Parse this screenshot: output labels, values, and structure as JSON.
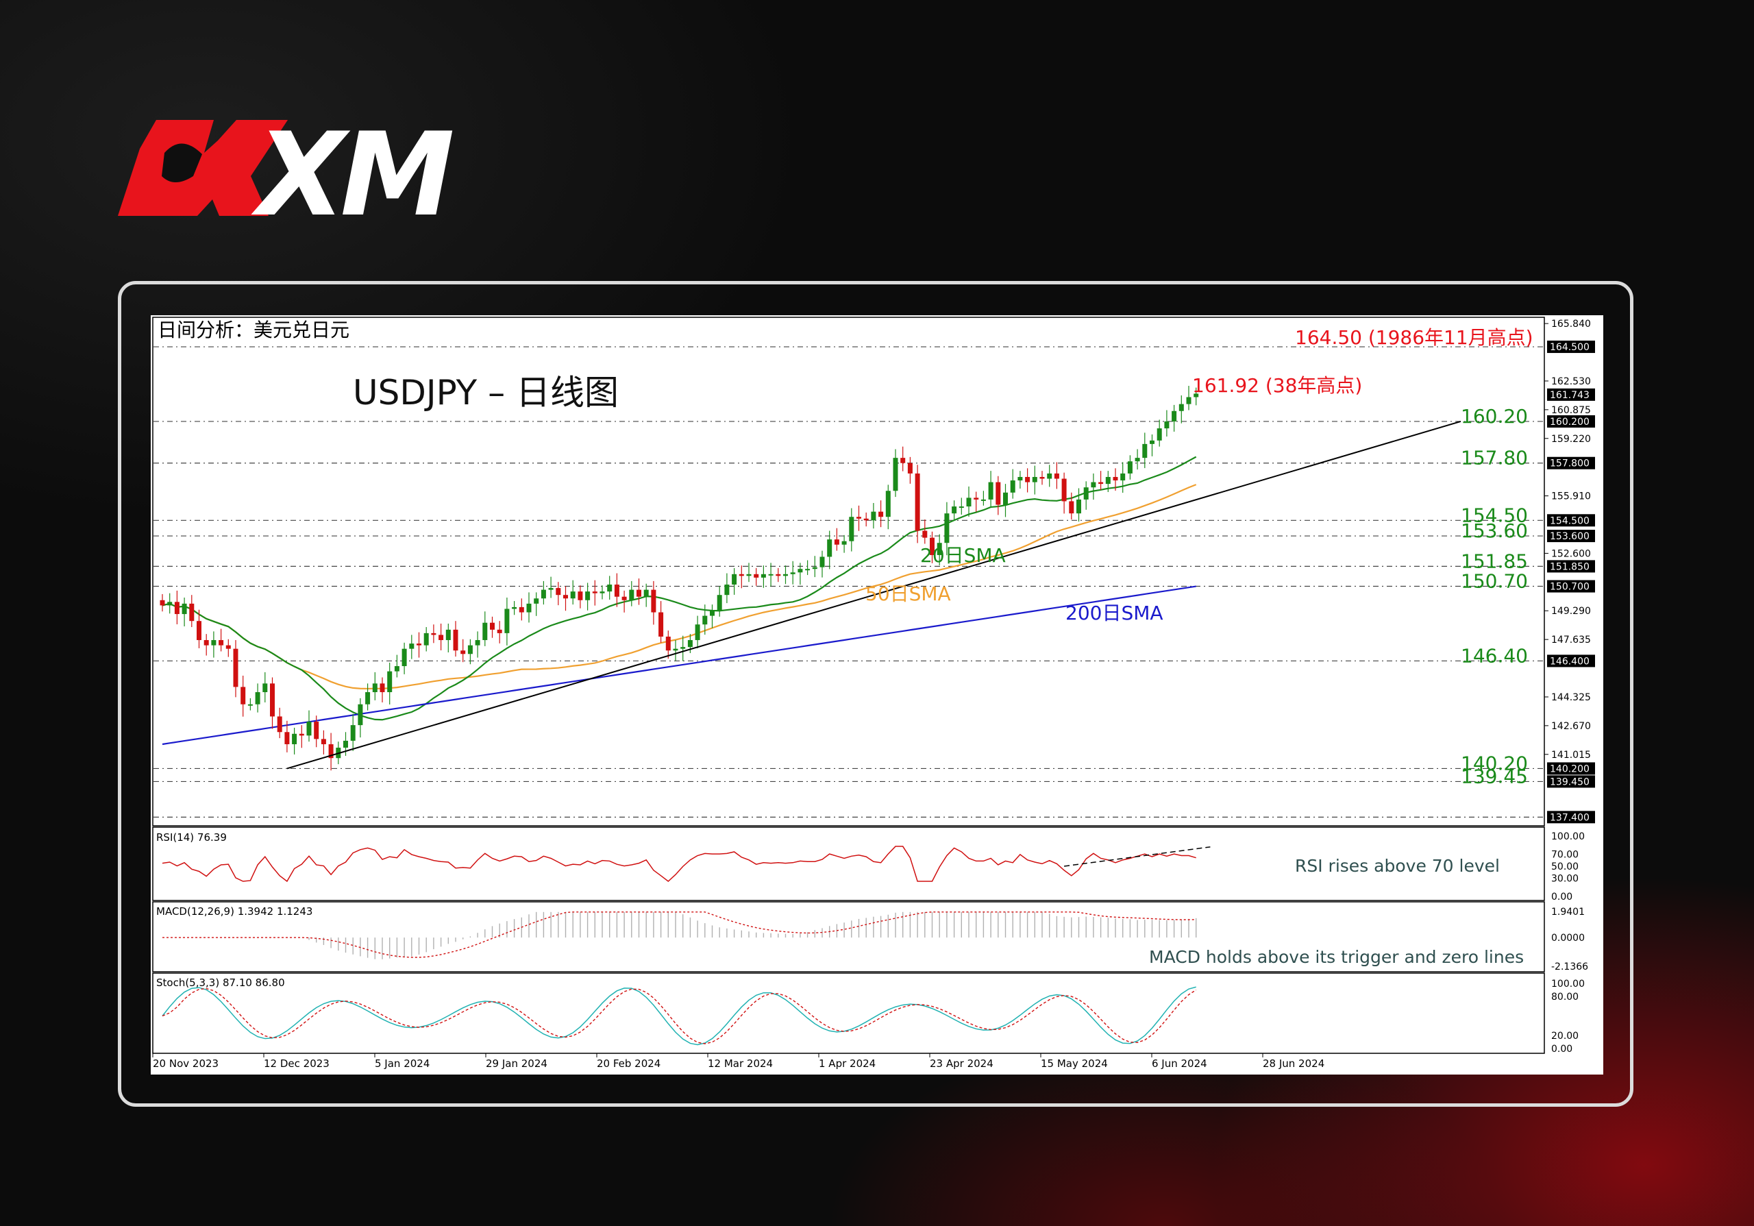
{
  "brand": {
    "logo_text": "XM",
    "red": "#e8141c"
  },
  "chart_panel_label": "日间分析：美元兑日元",
  "chart_title": "USDJPY – 日线图",
  "chart_data": {
    "type": "candlestick",
    "symbol": "USDJPY",
    "timeframe": "日线图",
    "x_tick_labels": [
      "20 Nov 2023",
      "12 Dec 2023",
      "5 Jan 2024",
      "29 Jan 2024",
      "20 Feb 2024",
      "12 Mar 2024",
      "1 Apr 2024",
      "23 Apr 2024",
      "15 May 2024",
      "6 Jun 2024",
      "28 Jun 2024"
    ],
    "ylim": [
      136.9,
      166.2
    ],
    "y_tick_labels": [
      "165.840",
      "162.530",
      "160.875",
      "159.220",
      "155.910",
      "152.600",
      "149.290",
      "147.635",
      "144.325",
      "142.670",
      "141.015"
    ],
    "levels": [
      {
        "value": 164.5,
        "label": "164.50 (1986年11月高点)",
        "price_tag": "164.500",
        "color": "#e8141c"
      },
      {
        "value": 160.2,
        "label": "160.20",
        "price_tag": "160.200",
        "color": "#1a8a1a"
      },
      {
        "value": 157.8,
        "label": "157.80",
        "price_tag": "157.800",
        "color": "#1a8a1a"
      },
      {
        "value": 154.5,
        "label": "154.50",
        "price_tag": "154.500",
        "color": "#1a8a1a"
      },
      {
        "value": 153.6,
        "label": "153.60",
        "price_tag": "153.600",
        "color": "#1a8a1a"
      },
      {
        "value": 151.85,
        "label": "151.85",
        "price_tag": "151.850",
        "color": "#1a8a1a"
      },
      {
        "value": 150.7,
        "label": "150.70",
        "price_tag": "150.700",
        "color": "#1a8a1a"
      },
      {
        "value": 146.4,
        "label": "146.40",
        "price_tag": "146.400",
        "color": "#1a8a1a"
      },
      {
        "value": 140.2,
        "label": "140.20",
        "price_tag": "140.200",
        "color": "#1a8a1a"
      },
      {
        "value": 139.45,
        "label": "139.45",
        "price_tag": "139.450",
        "color": "#1a8a1a"
      },
      {
        "value": 137.4,
        "label": "",
        "price_tag": "137.400",
        "color": "#1a8a1a"
      }
    ],
    "high_annotation": {
      "value": 161.92,
      "label": "161.92 (38年高点)"
    },
    "last_price_tag": "161.743",
    "closes": [
      149.6,
      149.8,
      149.1,
      149.7,
      148.7,
      147.6,
      147.3,
      147.6,
      147.3,
      147.1,
      144.9,
      143.9,
      143.9,
      144.6,
      145.1,
      143.2,
      142.3,
      141.6,
      142.2,
      142.1,
      142.9,
      141.9,
      141.6,
      140.8,
      141.4,
      141.8,
      142.7,
      143.9,
      144.6,
      145.1,
      144.6,
      145.8,
      146.1,
      147.1,
      147.4,
      147.3,
      148.0,
      147.9,
      147.6,
      148.2,
      147.0,
      146.8,
      147.3,
      147.6,
      148.6,
      148.2,
      148.0,
      149.4,
      149.5,
      149.2,
      149.7,
      150.0,
      150.5,
      150.6,
      150.2,
      150.0,
      150.4,
      149.9,
      150.4,
      150.3,
      150.4,
      150.8,
      150.1,
      149.9,
      150.5,
      150.1,
      150.5,
      149.2,
      147.8,
      147.0,
      147.1,
      147.2,
      147.6,
      148.5,
      149.0,
      149.3,
      150.2,
      150.8,
      151.4,
      151.3,
      151.4,
      151.2,
      151.4,
      151.4,
      151.3,
      151.4,
      151.5,
      151.7,
      151.7,
      151.8,
      152.4,
      153.4,
      153.1,
      153.3,
      154.7,
      154.6,
      154.5,
      155.0,
      154.7,
      156.2,
      158.1,
      157.8,
      157.2,
      153.9,
      153.5,
      152.5,
      153.2,
      154.9,
      155.3,
      155.3,
      155.8,
      155.7,
      155.7,
      156.7,
      155.4,
      156.1,
      156.8,
      157.0,
      156.7,
      157.0,
      156.9,
      157.2,
      156.9,
      155.6,
      154.9,
      155.7,
      156.4,
      156.7,
      156.6,
      157.0,
      156.8,
      157.2,
      157.9,
      158.1,
      158.9,
      159.1,
      159.8,
      160.2,
      160.8,
      161.2,
      161.6,
      161.8
    ],
    "sma20_label": "20日SMA",
    "sma20_color": "#1a8a1a",
    "sma50_label": "50日SMA",
    "sma50_color": "#f0a030",
    "sma200_label": "200日SMA",
    "sma200_color": "#1a1acc",
    "trendline": {
      "from": {
        "date": "28 Dec 2023",
        "price": 140.2
      },
      "to": {
        "date": "15 Jul 2024",
        "price": 160.2
      }
    },
    "rsi": {
      "header": "RSI(14) 76.39",
      "value": 76.39,
      "ylim": [
        0,
        100
      ],
      "ticks": [
        "100.00",
        "70.00",
        "50.00",
        "30.00",
        "0.00"
      ],
      "annotation": "RSI rises above 70 level"
    },
    "macd": {
      "header": "MACD(12,26,9) 1.3942 1.1243",
      "macd": 1.3942,
      "signal": 1.1243,
      "ticks": [
        "1.9401",
        "0.0000",
        "-2.1366"
      ],
      "annotation": "MACD holds above its trigger and zero lines"
    },
    "stoch": {
      "header": "Stoch(5,3,3) 87.10 86.80",
      "k": 87.1,
      "d": 86.8,
      "ylim": [
        0,
        100
      ],
      "ticks": [
        "100.00",
        "80.00",
        "20.00",
        "0.00"
      ]
    }
  }
}
